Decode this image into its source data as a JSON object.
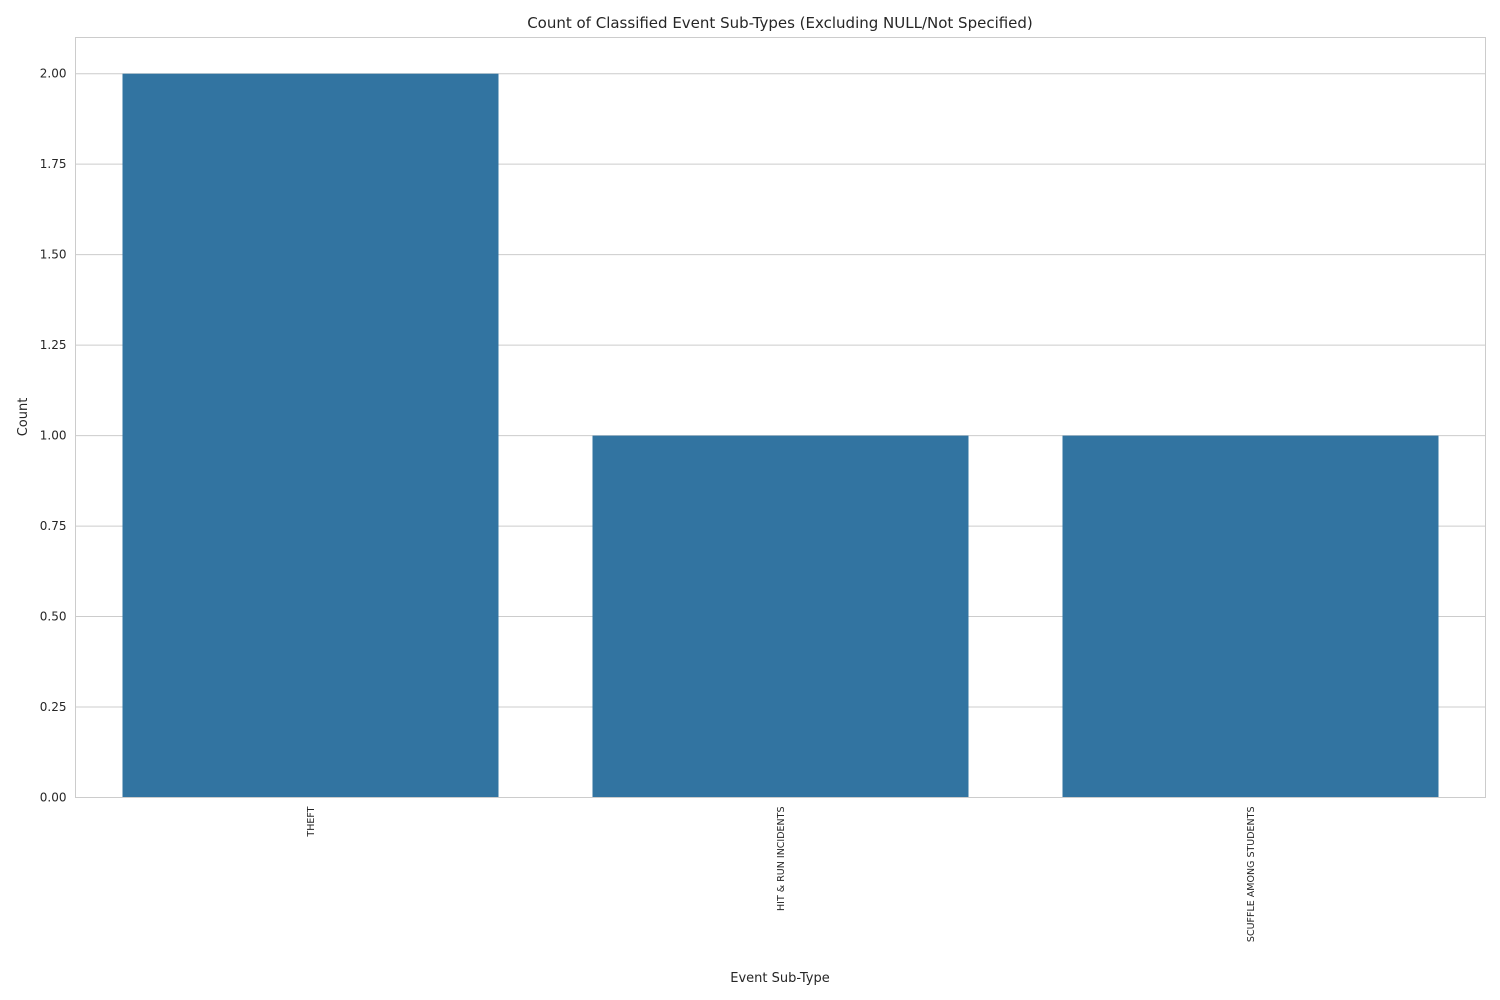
{
  "chart_data": {
    "type": "bar",
    "title": "Count of Classified Event Sub-Types (Excluding NULL/Not Specified)",
    "xlabel": "Event Sub-Type",
    "ylabel": "Count",
    "categories": [
      "THEFT",
      "HIT & RUN INCIDENTS",
      "SCUFFLE AMONG STUDENTS"
    ],
    "values": [
      2,
      1,
      1
    ],
    "ylim": [
      0,
      2.1
    ],
    "yticks": [
      0,
      0.25,
      0.5,
      0.75,
      1.0,
      1.25,
      1.5,
      1.75,
      2.0
    ],
    "ytick_labels": [
      "0.00",
      "0.25",
      "0.50",
      "0.75",
      "1.00",
      "1.25",
      "1.50",
      "1.75",
      "2.00"
    ],
    "grid": true,
    "colors": {
      "bar": "#3274a1"
    }
  }
}
